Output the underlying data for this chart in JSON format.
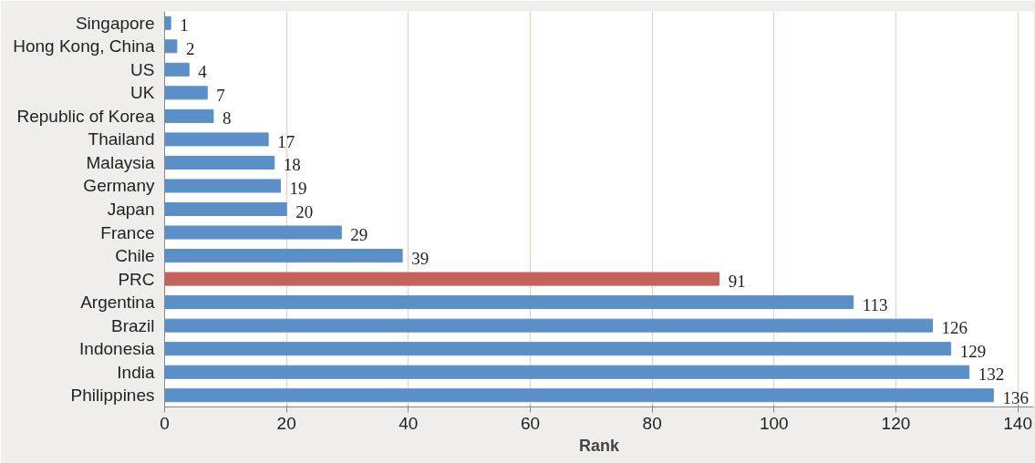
{
  "chart_data": {
    "type": "bar",
    "orientation": "horizontal",
    "xlabel": "Rank",
    "categories": [
      "Singapore",
      "Hong Kong, China",
      "US",
      "UK",
      "Republic of Korea",
      "Thailand",
      "Malaysia",
      "Germany",
      "Japan",
      "France",
      "Chile",
      "PRC",
      "Argentina",
      "Brazil",
      "Indonesia",
      "India",
      "Philippines"
    ],
    "values": [
      1,
      2,
      4,
      7,
      8,
      17,
      18,
      19,
      20,
      29,
      39,
      91,
      113,
      126,
      129,
      132,
      136
    ],
    "colors": [
      "#5b8fc7",
      "#5b8fc7",
      "#5b8fc7",
      "#5b8fc7",
      "#5b8fc7",
      "#5b8fc7",
      "#5b8fc7",
      "#5b8fc7",
      "#5b8fc7",
      "#5b8fc7",
      "#5b8fc7",
      "#c4625b",
      "#5b8fc7",
      "#5b8fc7",
      "#5b8fc7",
      "#5b8fc7",
      "#5b8fc7"
    ],
    "xlim": [
      0,
      142.6
    ],
    "xticks": [
      0,
      20,
      40,
      60,
      80,
      100,
      120,
      140
    ],
    "grid": "x",
    "data_labels": true
  }
}
